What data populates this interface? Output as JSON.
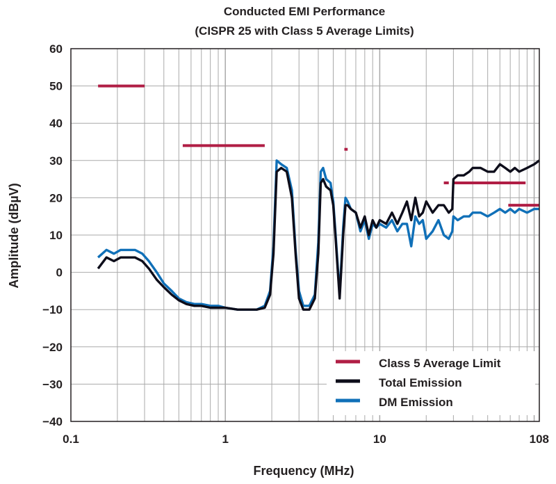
{
  "chart_data": {
    "type": "line",
    "title": "Conducted EMI Performance",
    "subtitle": "(CISPR 25 with Class 5 Average Limits)",
    "xlabel": "Frequency (MHz)",
    "ylabel": "Amplitude (dBµV)",
    "xscale": "log",
    "xlim": [
      0.1,
      108
    ],
    "ylim": [
      -40,
      60
    ],
    "xticks": [
      {
        "value": 0.1,
        "label": "0.1"
      },
      {
        "value": 1,
        "label": "1"
      },
      {
        "value": 10,
        "label": "10"
      },
      {
        "value": 108,
        "label": "108"
      }
    ],
    "yticks": [
      {
        "value": 60,
        "label": "60"
      },
      {
        "value": 50,
        "label": "50"
      },
      {
        "value": 40,
        "label": "40"
      },
      {
        "value": 30,
        "label": "30"
      },
      {
        "value": 20,
        "label": "20"
      },
      {
        "value": 10,
        "label": "10"
      },
      {
        "value": 0,
        "label": "0"
      },
      {
        "value": -10,
        "label": "−10"
      },
      {
        "value": -20,
        "label": "−20"
      },
      {
        "value": -30,
        "label": "−30"
      },
      {
        "value": -40,
        "label": "−40"
      }
    ],
    "grid": true,
    "legend_position": "bottom-right",
    "colors": {
      "limit": "#b01e45",
      "total": "#0d0d1a",
      "dm": "#1070b8",
      "grid": "#a9a9a9",
      "axis": "#231f20"
    },
    "limit_series": {
      "name": "Class 5 Average Limit",
      "segments": [
        {
          "x": [
            0.15,
            0.3
          ],
          "y": 50
        },
        {
          "x": [
            0.53,
            1.8
          ],
          "y": 34
        },
        {
          "x": [
            5.9,
            6.2
          ],
          "y": 33
        },
        {
          "x": [
            26,
            28
          ],
          "y": 24
        },
        {
          "x": [
            30,
            88
          ],
          "y": 24
        },
        {
          "x": [
            68,
            108
          ],
          "y": 18
        }
      ]
    },
    "series": [
      {
        "name": "Total Emission",
        "x": [
          0.15,
          0.17,
          0.19,
          0.21,
          0.23,
          0.26,
          0.29,
          0.32,
          0.36,
          0.4,
          0.45,
          0.5,
          0.56,
          0.63,
          0.7,
          0.8,
          0.9,
          1.0,
          1.2,
          1.4,
          1.6,
          1.8,
          1.95,
          2.05,
          2.15,
          2.3,
          2.5,
          2.7,
          2.85,
          3.0,
          3.2,
          3.5,
          3.8,
          4.0,
          4.15,
          4.3,
          4.5,
          4.8,
          5.0,
          5.2,
          5.5,
          5.8,
          6.0,
          6.2,
          6.5,
          7.0,
          7.5,
          8.0,
          8.5,
          9.0,
          9.5,
          10,
          11,
          12,
          13,
          14,
          15,
          16,
          17,
          18,
          19,
          20,
          22,
          24,
          26,
          28,
          29.5,
          30,
          32,
          35,
          38,
          40,
          45,
          50,
          55,
          60,
          65,
          70,
          75,
          80,
          90,
          100,
          108
        ],
        "values": [
          1,
          4,
          3,
          4,
          4,
          4,
          3,
          1,
          -2,
          -4,
          -6,
          -7.5,
          -8.5,
          -9,
          -9,
          -9.5,
          -9.5,
          -9.5,
          -10,
          -10,
          -10,
          -9.5,
          -6,
          5,
          27,
          28,
          27,
          20,
          5,
          -7,
          -10,
          -10,
          -7,
          5,
          24,
          25,
          23,
          22,
          18,
          8,
          -7,
          10,
          18,
          18,
          17,
          16,
          12,
          15,
          10,
          14,
          12,
          14,
          13,
          16,
          13,
          16,
          19,
          14,
          20,
          15,
          16,
          19,
          16,
          18,
          18,
          16,
          17,
          25,
          26,
          26,
          27,
          28,
          28,
          27,
          27,
          29,
          28,
          27,
          28,
          27,
          28,
          29,
          30
        ]
      },
      {
        "name": "DM Emission",
        "x": [
          0.15,
          0.17,
          0.19,
          0.21,
          0.23,
          0.26,
          0.29,
          0.32,
          0.36,
          0.4,
          0.45,
          0.5,
          0.56,
          0.63,
          0.7,
          0.8,
          0.9,
          1.0,
          1.2,
          1.4,
          1.6,
          1.8,
          1.95,
          2.05,
          2.15,
          2.3,
          2.5,
          2.7,
          2.85,
          3.0,
          3.2,
          3.5,
          3.8,
          4.0,
          4.15,
          4.3,
          4.5,
          4.8,
          5.0,
          5.2,
          5.5,
          5.8,
          6.0,
          6.2,
          6.5,
          7.0,
          7.5,
          8.0,
          8.5,
          9.0,
          9.5,
          10,
          11,
          12,
          13,
          14,
          15,
          16,
          17,
          18,
          19,
          20,
          22,
          24,
          26,
          28,
          29.5,
          30,
          32,
          35,
          38,
          40,
          45,
          50,
          55,
          60,
          65,
          70,
          75,
          80,
          90,
          100,
          108
        ],
        "values": [
          4,
          6,
          5,
          6,
          6,
          6,
          5,
          3,
          0,
          -3,
          -5,
          -7,
          -8,
          -8.5,
          -8.5,
          -9,
          -9,
          -9.5,
          -10,
          -10,
          -10,
          -9,
          -5,
          7,
          30,
          29,
          28,
          22,
          6,
          -5,
          -9,
          -9,
          -6,
          8,
          27,
          28,
          25,
          24,
          19,
          9,
          -6,
          12,
          20,
          19,
          17,
          16,
          11,
          14,
          9,
          13,
          12,
          13,
          12,
          14,
          11,
          13,
          13,
          7,
          15,
          13,
          14,
          9,
          11,
          14,
          10,
          9,
          11,
          15,
          14,
          15,
          15,
          16,
          16,
          15,
          16,
          17,
          16,
          17,
          16,
          17,
          16,
          17,
          17
        ]
      }
    ],
    "legend": [
      {
        "key": "limit",
        "label": "Class 5 Average Limit"
      },
      {
        "key": "total",
        "label": "Total Emission"
      },
      {
        "key": "dm",
        "label": "DM Emission"
      }
    ]
  }
}
